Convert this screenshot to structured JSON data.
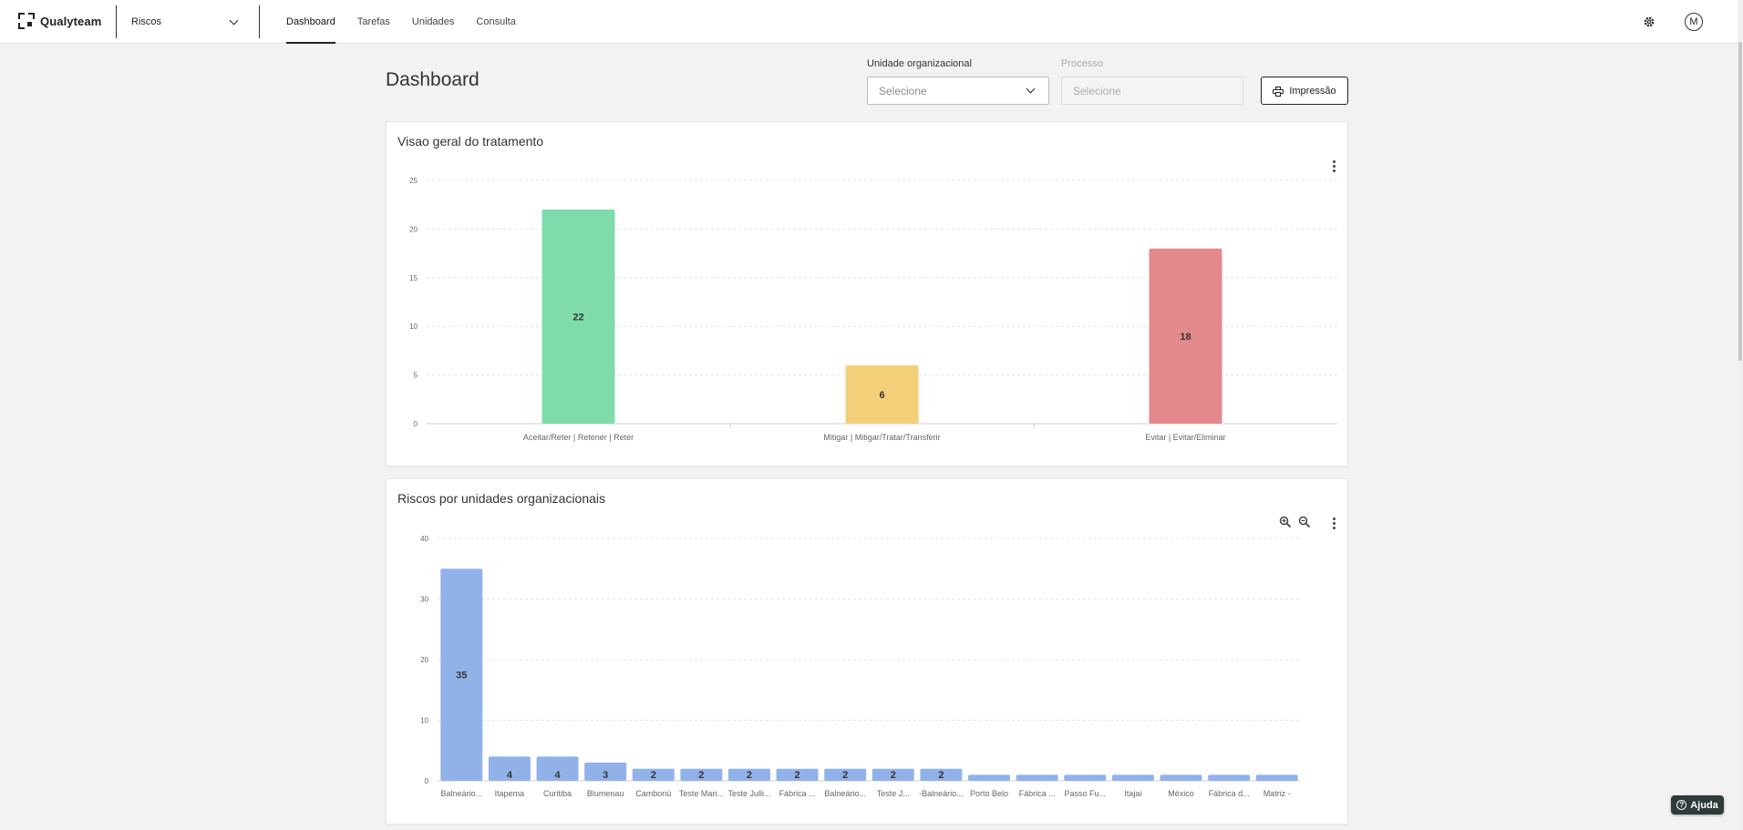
{
  "app": {
    "brand": "Qualyteam",
    "module": "Riscos"
  },
  "nav": [
    {
      "label": "Dashboard",
      "active": true
    },
    {
      "label": "Tarefas",
      "active": false
    },
    {
      "label": "Unidades",
      "active": false
    },
    {
      "label": "Consulta",
      "active": false
    }
  ],
  "header": {
    "avatar_initial": "M",
    "icons": [
      "gear-icon",
      "avatar"
    ]
  },
  "page": {
    "title": "Dashboard",
    "filters": {
      "unit_label": "Unidade organizacional",
      "unit_placeholder": "Selecione",
      "process_label": "Processo",
      "process_placeholder": "Selecione"
    },
    "print_label": "Impressão"
  },
  "help": {
    "label": "Ajuda"
  },
  "colors": {
    "accent": "#222222",
    "bar_green": "#7fdcaa",
    "bar_yellow": "#f4cf7a",
    "bar_red": "#e3898b",
    "bar_blue": "#91b2e9"
  },
  "chart_data": [
    {
      "type": "bar",
      "title": "Visao geral do tratamento",
      "categories": [
        "Aceitar/Reter | Retener | Reter",
        "Mitigar | Mitigar/Tratar/Transferir",
        "Evitar | Evitar/Eliminar"
      ],
      "values": [
        22,
        6,
        18
      ],
      "colors": [
        "#7fdcaa",
        "#f4cf7a",
        "#e3898b"
      ],
      "ylim": [
        0,
        25
      ],
      "yticks": [
        0,
        5,
        10,
        15,
        20,
        25
      ],
      "grid": true,
      "data_labels": true
    },
    {
      "type": "bar",
      "title": "Riscos por unidades organizacionais",
      "categories": [
        "Balneário...",
        "Itapema",
        "Curitiba",
        "Blumenau",
        "Camboriú",
        "Teste Mari...",
        "Teste Julli...",
        "Fábrica ...",
        "Balneário...",
        "Teste J...",
        "-Balneário...",
        "Porto Belo",
        "Fábrica ...",
        "Passo Fu...",
        "Itajai",
        "México",
        "Fábrica d...",
        "Matriz -"
      ],
      "values": [
        35,
        4,
        4,
        3,
        2,
        2,
        2,
        2,
        2,
        2,
        2,
        1,
        1,
        1,
        1,
        1,
        1,
        1
      ],
      "labels_shown": [
        true,
        true,
        true,
        true,
        true,
        true,
        true,
        true,
        true,
        true,
        true,
        false,
        false,
        false,
        false,
        false,
        false,
        false
      ],
      "color": "#91b2e9",
      "ylim": [
        0,
        40
      ],
      "yticks": [
        0,
        10,
        20,
        30,
        40
      ],
      "grid": true,
      "data_labels": true
    }
  ]
}
